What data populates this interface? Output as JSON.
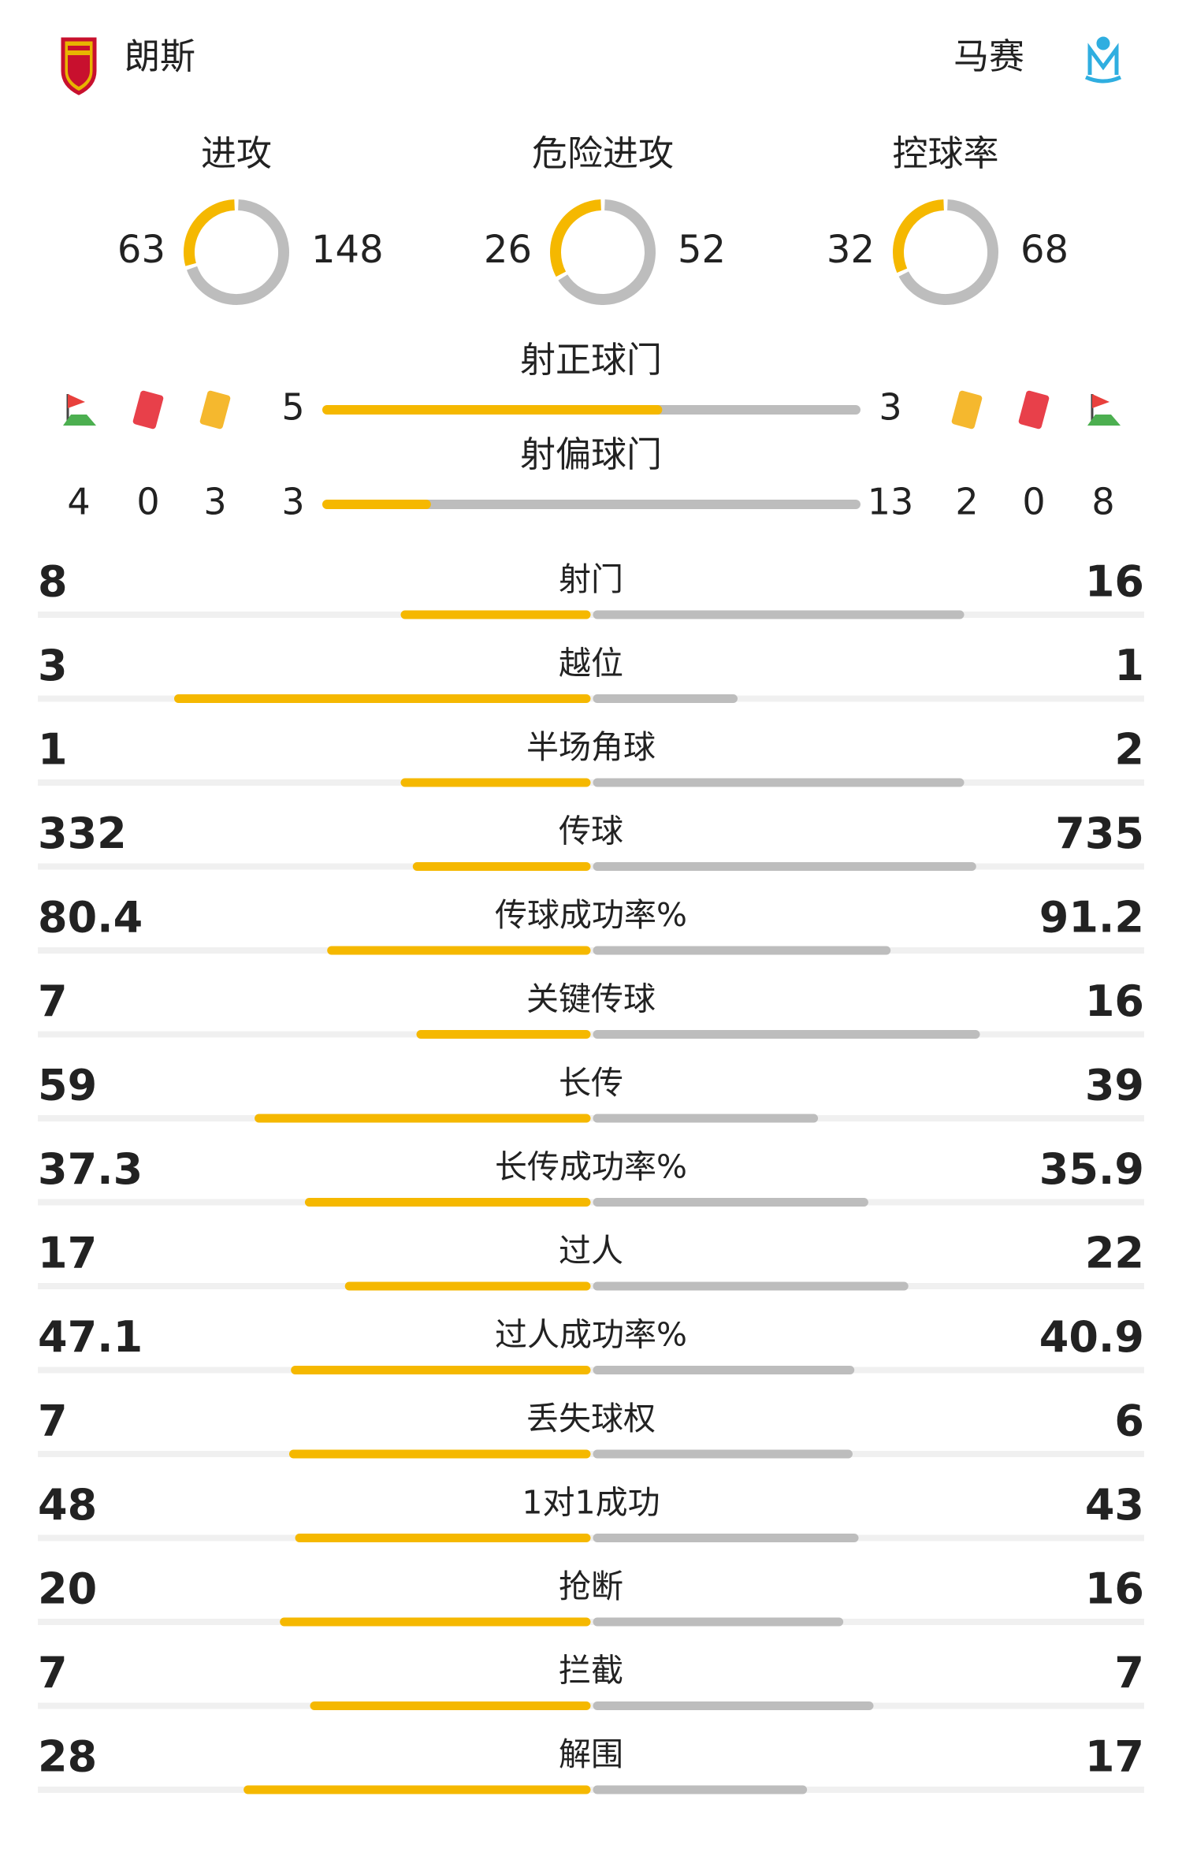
{
  "home": {
    "name": "朗斯"
  },
  "away": {
    "name": "马赛"
  },
  "donuts": [
    {
      "label": "进攻",
      "home": 63,
      "away": 148
    },
    {
      "label": "危险进攻",
      "home": 26,
      "away": 52
    },
    {
      "label": "控球率",
      "home": 32,
      "away": 68
    }
  ],
  "shots": [
    {
      "label": "射正球门",
      "home": 5,
      "away": 3
    },
    {
      "label": "射偏球门",
      "home": 3,
      "away": 13
    }
  ],
  "cards": {
    "home": {
      "corners": 4,
      "red": 0,
      "yellow": 3
    },
    "away": {
      "yellow": 2,
      "red": 0,
      "corners": 8
    }
  },
  "stats": [
    {
      "label": "射门",
      "home": 8,
      "away": 16
    },
    {
      "label": "越位",
      "home": 3,
      "away": 1
    },
    {
      "label": "半场角球",
      "home": 1,
      "away": 2
    },
    {
      "label": "传球",
      "home": 332,
      "away": 735
    },
    {
      "label": "传球成功率%",
      "home": 80.4,
      "away": 91.2
    },
    {
      "label": "关键传球",
      "home": 7,
      "away": 16
    },
    {
      "label": "长传",
      "home": 59,
      "away": 39
    },
    {
      "label": "长传成功率%",
      "home": 37.3,
      "away": 35.9
    },
    {
      "label": "过人",
      "home": 17,
      "away": 22
    },
    {
      "label": "过人成功率%",
      "home": 47.1,
      "away": 40.9
    },
    {
      "label": "丢失球权",
      "home": 7,
      "away": 6
    },
    {
      "label": "1对1成功",
      "home": 48,
      "away": 43
    },
    {
      "label": "抢断",
      "home": 20,
      "away": 16
    },
    {
      "label": "拦截",
      "home": 7,
      "away": 7
    },
    {
      "label": "解围",
      "home": 28,
      "away": 17
    }
  ]
}
